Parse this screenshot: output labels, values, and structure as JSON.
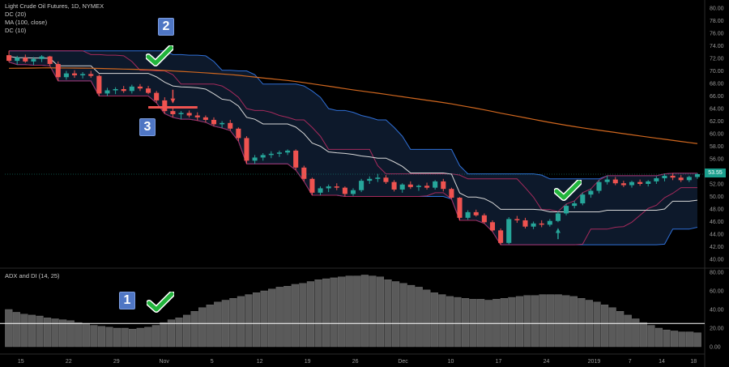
{
  "chart_data": [
    {
      "type": "candlestick",
      "title": "Light Crude Oil Futures, 1D, NYMEX",
      "indicators": [
        "DC (20)",
        "MA (100, close)",
        "DC (10)"
      ],
      "ylim": [
        40,
        80
      ],
      "y_ticks": [
        "80.00",
        "78.00",
        "76.00",
        "74.00",
        "72.00",
        "70.00",
        "68.00",
        "66.00",
        "64.00",
        "62.00",
        "60.00",
        "58.00",
        "56.00",
        "54.00",
        "52.00",
        "50.00",
        "48.00",
        "46.00",
        "44.00",
        "42.00",
        "40.00"
      ],
      "last_price": "53.55",
      "x_ticks": [
        "15",
        "22",
        "29",
        "Nov",
        "5",
        "12",
        "19",
        "26",
        "Dec",
        "10",
        "17",
        "24",
        "2019",
        "7",
        "14",
        "18"
      ],
      "candles": [
        [
          72.5,
          73.2,
          71.4,
          71.6
        ],
        [
          71.6,
          72.4,
          71.0,
          72.1
        ],
        [
          72.1,
          72.6,
          71.3,
          71.5
        ],
        [
          71.5,
          72.2,
          70.9,
          71.9
        ],
        [
          71.9,
          72.5,
          71.4,
          72.3
        ],
        [
          72.3,
          72.4,
          70.8,
          71.1
        ],
        [
          71.1,
          71.5,
          68.4,
          69.0
        ],
        [
          69.0,
          70.0,
          68.6,
          69.6
        ],
        [
          69.6,
          70.1,
          68.9,
          69.3
        ],
        [
          69.3,
          69.8,
          68.8,
          69.5
        ],
        [
          69.5,
          70.0,
          68.9,
          69.2
        ],
        [
          69.2,
          69.4,
          66.0,
          66.4
        ],
        [
          66.4,
          67.3,
          66.0,
          66.9
        ],
        [
          66.9,
          67.4,
          66.3,
          67.1
        ],
        [
          67.1,
          67.6,
          66.5,
          66.8
        ],
        [
          66.8,
          67.8,
          66.4,
          67.5
        ],
        [
          67.5,
          67.9,
          66.8,
          67.2
        ],
        [
          67.2,
          67.6,
          66.3,
          66.5
        ],
        [
          66.5,
          66.8,
          64.9,
          65.3
        ],
        [
          65.3,
          65.8,
          63.2,
          63.6
        ],
        [
          63.6,
          64.0,
          62.6,
          63.1
        ],
        [
          63.1,
          63.6,
          62.3,
          63.3
        ],
        [
          63.3,
          63.7,
          62.6,
          62.9
        ],
        [
          62.9,
          63.4,
          62.1,
          62.6
        ],
        [
          62.6,
          62.9,
          61.8,
          62.2
        ],
        [
          62.2,
          62.6,
          61.2,
          61.5
        ],
        [
          61.5,
          62.0,
          60.9,
          61.7
        ],
        [
          61.7,
          62.2,
          60.5,
          60.8
        ],
        [
          60.8,
          61.0,
          58.8,
          59.3
        ],
        [
          59.3,
          59.6,
          55.2,
          55.7
        ],
        [
          55.7,
          56.6,
          55.2,
          56.2
        ],
        [
          56.2,
          56.9,
          55.7,
          56.6
        ],
        [
          56.6,
          57.2,
          56.1,
          56.8
        ],
        [
          56.8,
          57.3,
          56.3,
          57.0
        ],
        [
          57.0,
          57.5,
          56.6,
          57.3
        ],
        [
          57.3,
          57.5,
          54.2,
          54.6
        ],
        [
          54.6,
          54.9,
          52.4,
          52.8
        ],
        [
          52.8,
          53.0,
          50.2,
          50.6
        ],
        [
          50.6,
          51.6,
          50.2,
          51.3
        ],
        [
          51.3,
          51.9,
          50.7,
          51.6
        ],
        [
          51.6,
          52.1,
          51.0,
          51.4
        ],
        [
          51.4,
          51.6,
          50.0,
          50.4
        ],
        [
          50.4,
          51.3,
          50.1,
          51.0
        ],
        [
          51.0,
          52.8,
          50.7,
          52.5
        ],
        [
          52.5,
          53.2,
          52.0,
          52.8
        ],
        [
          52.8,
          53.6,
          52.3,
          53.0
        ],
        [
          53.0,
          53.4,
          52.0,
          52.3
        ],
        [
          52.3,
          52.6,
          50.8,
          51.1
        ],
        [
          51.1,
          52.1,
          50.6,
          51.9
        ],
        [
          51.9,
          52.4,
          51.2,
          51.5
        ],
        [
          51.5,
          51.9,
          50.9,
          51.7
        ],
        [
          51.7,
          52.2,
          51.1,
          51.4
        ],
        [
          51.4,
          52.6,
          51.1,
          52.4
        ],
        [
          52.4,
          52.8,
          50.8,
          51.2
        ],
        [
          51.2,
          51.4,
          49.6,
          49.8
        ],
        [
          49.8,
          49.9,
          46.2,
          46.6
        ],
        [
          46.6,
          47.8,
          46.3,
          47.5
        ],
        [
          47.5,
          47.9,
          46.8,
          47.0
        ],
        [
          47.0,
          47.3,
          45.7,
          45.9
        ],
        [
          45.9,
          46.2,
          44.4,
          44.6
        ],
        [
          44.6,
          44.9,
          42.3,
          42.6
        ],
        [
          42.6,
          46.7,
          42.4,
          46.4
        ],
        [
          46.4,
          46.9,
          45.8,
          46.2
        ],
        [
          46.2,
          46.6,
          44.9,
          45.2
        ],
        [
          45.2,
          46.0,
          44.8,
          45.7
        ],
        [
          45.7,
          46.2,
          45.1,
          45.5
        ],
        [
          45.5,
          46.4,
          45.2,
          46.1
        ],
        [
          46.1,
          47.6,
          45.9,
          47.3
        ],
        [
          47.3,
          48.8,
          47.0,
          48.5
        ],
        [
          48.5,
          49.3,
          48.1,
          48.9
        ],
        [
          48.9,
          50.6,
          48.6,
          50.3
        ],
        [
          50.3,
          51.2,
          49.8,
          50.9
        ],
        [
          50.9,
          52.6,
          50.5,
          52.3
        ],
        [
          52.3,
          53.3,
          51.9,
          52.7
        ],
        [
          52.7,
          53.1,
          51.8,
          52.1
        ],
        [
          52.1,
          52.5,
          51.5,
          51.8
        ],
        [
          51.8,
          52.5,
          51.4,
          52.3
        ],
        [
          52.3,
          52.7,
          51.7,
          52.0
        ],
        [
          52.0,
          52.6,
          51.6,
          52.4
        ],
        [
          52.4,
          53.2,
          52.0,
          52.9
        ],
        [
          52.9,
          53.6,
          52.4,
          53.3
        ],
        [
          53.3,
          53.7,
          52.6,
          53.0
        ],
        [
          53.0,
          53.4,
          52.3,
          52.6
        ],
        [
          52.6,
          53.3,
          52.3,
          53.1
        ],
        [
          53.1,
          53.7,
          52.8,
          53.55
        ]
      ],
      "dc20_upper_color": "#2f6fd6",
      "dc10_color": "#a52a5c",
      "ma_color": "#d0671f",
      "mid_color": "#d8d8d8"
    },
    {
      "type": "bar",
      "title": "ADX and DI (14, 25)",
      "ylim": [
        0,
        80
      ],
      "y_ticks": [
        "80.00",
        "60.00",
        "40.00",
        "20.00",
        "0.00"
      ],
      "threshold": 25,
      "values": [
        40,
        37,
        35,
        34,
        33,
        31,
        30,
        29,
        28,
        26,
        25,
        23,
        22,
        21,
        20,
        20,
        19,
        20,
        21,
        23,
        26,
        29,
        31,
        34,
        38,
        42,
        45,
        48,
        50,
        52,
        54,
        56,
        58,
        60,
        62,
        64,
        65,
        67,
        68,
        70,
        72,
        73,
        74,
        75,
        76,
        76,
        77,
        76,
        75,
        72,
        70,
        68,
        66,
        64,
        61,
        58,
        56,
        54,
        53,
        52,
        51,
        51,
        50,
        51,
        52,
        53,
        54,
        55,
        55,
        56,
        56,
        56,
        55,
        54,
        52,
        50,
        48,
        45,
        42,
        38,
        34,
        30,
        26,
        23,
        20,
        18,
        17,
        16,
        16,
        15
      ]
    }
  ],
  "annotations": {
    "badge1": "1",
    "badge2": "2",
    "badge3": "3"
  }
}
